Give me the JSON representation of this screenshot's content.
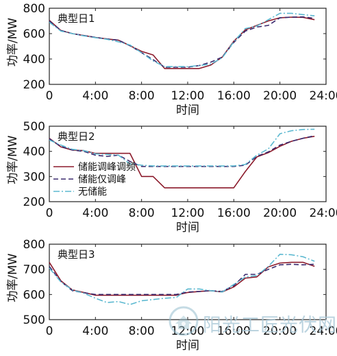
{
  "chart_data": [
    {
      "type": "line",
      "title": "典型日1",
      "xlabel": "时间",
      "ylabel": "功率/MW",
      "xlim": [
        0,
        24
      ],
      "ylim": [
        200,
        800
      ],
      "xticks": [
        "0",
        "4:00",
        "8:00",
        "12:00",
        "16:00",
        "20:00",
        "24:00"
      ],
      "yticks": [
        "200",
        "400",
        "600",
        "800"
      ],
      "legend": false,
      "series": [
        {
          "key": "s1",
          "color": "#8b1a2b",
          "dash": "",
          "x": [
            0,
            1,
            2,
            3,
            4,
            5,
            6,
            7,
            8,
            9,
            10,
            11,
            12,
            13,
            14,
            15,
            16,
            17,
            18,
            19,
            20,
            21,
            22,
            23
          ],
          "values": [
            705,
            625,
            600,
            585,
            570,
            558,
            548,
            505,
            460,
            432,
            325,
            325,
            325,
            325,
            352,
            415,
            540,
            630,
            665,
            700,
            725,
            730,
            728,
            710
          ]
        },
        {
          "key": "s2",
          "color": "#3a2a6e",
          "dash": "7,4",
          "x": [
            0,
            1,
            2,
            3,
            4,
            5,
            6,
            7,
            8,
            9,
            10,
            11,
            12,
            13,
            14,
            15,
            16,
            17,
            18,
            19,
            20,
            21,
            22,
            23
          ],
          "values": [
            700,
            625,
            600,
            585,
            570,
            558,
            548,
            505,
            450,
            395,
            335,
            335,
            335,
            348,
            375,
            415,
            530,
            620,
            652,
            665,
            725,
            730,
            732,
            720
          ]
        },
        {
          "key": "s3",
          "color": "#5bb8d0",
          "dash": "9,3,2,3",
          "x": [
            0,
            1,
            2,
            3,
            4,
            5,
            6,
            7,
            8,
            9,
            10,
            11,
            12,
            13,
            14,
            15,
            16,
            17,
            18,
            19,
            20,
            21,
            22,
            23
          ],
          "values": [
            690,
            620,
            600,
            582,
            568,
            555,
            535,
            510,
            450,
            385,
            340,
            340,
            340,
            348,
            360,
            410,
            535,
            640,
            660,
            710,
            760,
            760,
            750,
            740
          ]
        }
      ]
    },
    {
      "type": "line",
      "title": "典型日2",
      "xlabel": "时间",
      "ylabel": "功率/MW",
      "xlim": [
        0,
        24
      ],
      "ylim": [
        200,
        500
      ],
      "xticks": [
        "0",
        "4:00",
        "8:00",
        "12:00",
        "16:00",
        "20:00",
        "24:00"
      ],
      "yticks": [
        "200",
        "300",
        "400",
        "500"
      ],
      "legend": true,
      "legend_position": "center-left",
      "series": [
        {
          "key": "s1",
          "name": "储能调峰调频",
          "color": "#8b1a2b",
          "dash": "",
          "x": [
            0,
            1,
            2,
            3,
            4,
            5,
            6,
            7,
            8,
            9,
            10,
            11,
            12,
            13,
            14,
            15,
            16,
            17,
            18,
            19,
            20,
            21,
            22,
            23
          ],
          "values": [
            452,
            418,
            405,
            403,
            392,
            392,
            392,
            392,
            300,
            300,
            255,
            255,
            255,
            255,
            255,
            255,
            255,
            320,
            378,
            395,
            420,
            440,
            452,
            460
          ]
        },
        {
          "key": "s2",
          "name": "储能仅调峰",
          "color": "#3a2a6e",
          "dash": "7,4",
          "x": [
            0,
            1,
            2,
            3,
            4,
            5,
            6,
            7,
            8,
            9,
            10,
            11,
            12,
            13,
            14,
            15,
            16,
            17,
            18,
            19,
            20,
            21,
            22,
            23
          ],
          "values": [
            450,
            420,
            405,
            400,
            385,
            380,
            385,
            360,
            340,
            340,
            340,
            340,
            340,
            340,
            340,
            340,
            340,
            345,
            380,
            398,
            425,
            440,
            452,
            462
          ]
        },
        {
          "key": "s3",
          "name": "无储能",
          "color": "#5bb8d0",
          "dash": "9,3,2,3",
          "x": [
            0,
            1,
            2,
            3,
            4,
            5,
            6,
            7,
            8,
            9,
            10,
            11,
            12,
            13,
            14,
            15,
            16,
            17,
            18,
            19,
            20,
            21,
            22,
            23
          ],
          "values": [
            445,
            425,
            408,
            403,
            390,
            388,
            385,
            350,
            345,
            342,
            342,
            342,
            342,
            342,
            342,
            342,
            342,
            348,
            385,
            410,
            470,
            482,
            487,
            488
          ]
        }
      ]
    },
    {
      "type": "line",
      "title": "典型日3",
      "xlabel": "时间",
      "ylabel": "功率/MW",
      "xlim": [
        0,
        24
      ],
      "ylim": [
        500,
        800
      ],
      "xticks": [
        "0",
        "4:00",
        "8:00",
        "12:00",
        "16:00",
        "20:00",
        "24:00"
      ],
      "yticks": [
        "500",
        "600",
        "700",
        "800"
      ],
      "legend": false,
      "series": [
        {
          "key": "s1",
          "color": "#8b1a2b",
          "dash": "",
          "x": [
            0,
            1,
            2,
            3,
            4,
            5,
            6,
            7,
            8,
            9,
            10,
            11,
            12,
            13,
            14,
            15,
            16,
            17,
            18,
            19,
            20,
            21,
            22,
            23
          ],
          "values": [
            728,
            655,
            618,
            608,
            597,
            597,
            597,
            597,
            597,
            597,
            597,
            597,
            608,
            612,
            615,
            610,
            630,
            665,
            670,
            710,
            725,
            728,
            728,
            712
          ]
        },
        {
          "key": "s2",
          "color": "#3a2a6e",
          "dash": "7,4",
          "x": [
            0,
            1,
            2,
            3,
            4,
            5,
            6,
            7,
            8,
            9,
            10,
            11,
            12,
            13,
            14,
            15,
            16,
            17,
            18,
            19,
            20,
            21,
            22,
            23
          ],
          "values": [
            712,
            652,
            615,
            607,
            600,
            600,
            600,
            600,
            600,
            600,
            600,
            600,
            610,
            612,
            615,
            612,
            635,
            680,
            680,
            700,
            718,
            720,
            718,
            720
          ]
        },
        {
          "key": "s3",
          "color": "#5bb8d0",
          "dash": "9,3,2,3",
          "x": [
            0,
            1,
            2,
            3,
            4,
            5,
            6,
            7,
            8,
            9,
            10,
            11,
            12,
            13,
            14,
            15,
            16,
            17,
            18,
            19,
            20,
            21,
            22,
            23
          ],
          "values": [
            705,
            650,
            618,
            605,
            585,
            568,
            572,
            560,
            575,
            580,
            585,
            588,
            622,
            622,
            615,
            610,
            640,
            670,
            675,
            712,
            760,
            758,
            750,
            732
          ]
        }
      ]
    }
  ],
  "watermark": {
    "text": "阳光工匠光伏网",
    "color": "#aac8d7",
    "icon": "sun-house-logo-icon"
  }
}
